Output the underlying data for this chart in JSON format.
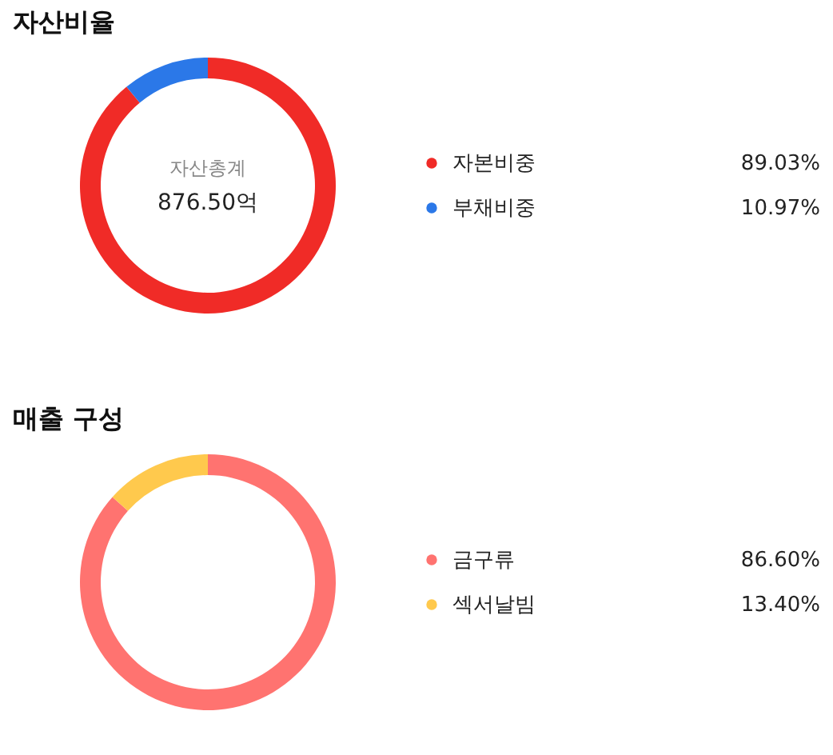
{
  "chart_data": [
    {
      "type": "donut",
      "title": "자산비율",
      "categories": [
        "자본비중",
        "부채비중"
      ],
      "values": [
        89.03,
        10.97
      ],
      "colors": [
        "#f02b27",
        "#2b78e8"
      ],
      "value_labels": [
        "89.03%",
        "10.97%"
      ],
      "legend": "right",
      "annotations": [
        "자산총계",
        "876.50억"
      ]
    },
    {
      "type": "donut",
      "title": "매출 구성",
      "categories": [
        "금구류",
        "섹서날빔"
      ],
      "values": [
        86.6,
        13.4
      ],
      "colors": [
        "#ff7370",
        "#ffc94d"
      ],
      "value_labels": [
        "86.60%",
        "13.40%"
      ],
      "legend": "right"
    }
  ]
}
